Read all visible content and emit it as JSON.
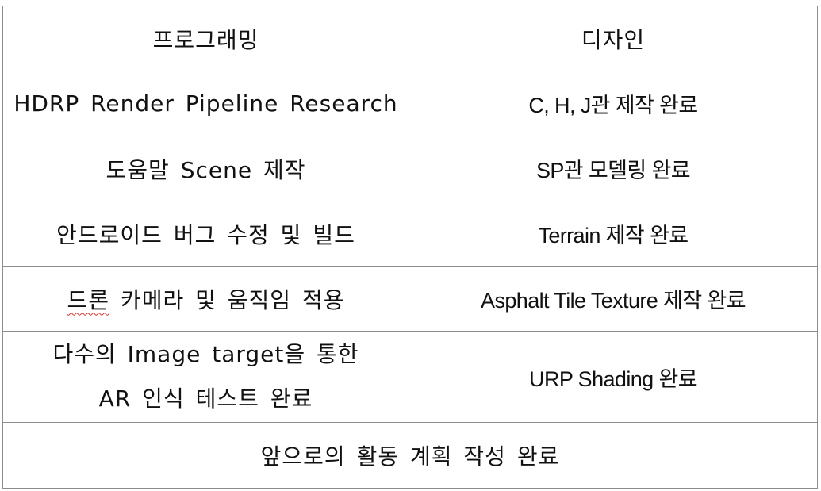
{
  "table": {
    "headers": [
      "프로그래밍",
      "디자인"
    ],
    "rows": [
      {
        "left": "HDRP Render Pipeline Research",
        "right": "C, H, J관 제작 완료"
      },
      {
        "left": "도움말 Scene 제작",
        "right": "SP관 모델링 완료"
      },
      {
        "left": "안드로이드 버그 수정 및 빌드",
        "right": "Terrain 제작 완료"
      },
      {
        "left_flagged": "드론",
        "left_rest": " 카메라 및 움직임 적용",
        "right": "Asphalt Tile Texture 제작 완료"
      },
      {
        "left_lines": [
          "다수의 Image target을 통한",
          "AR 인식 테스트 완료"
        ],
        "right": "URP Shading 완료"
      }
    ],
    "footer": "앞으로의 활동 계획 작성 완료"
  }
}
